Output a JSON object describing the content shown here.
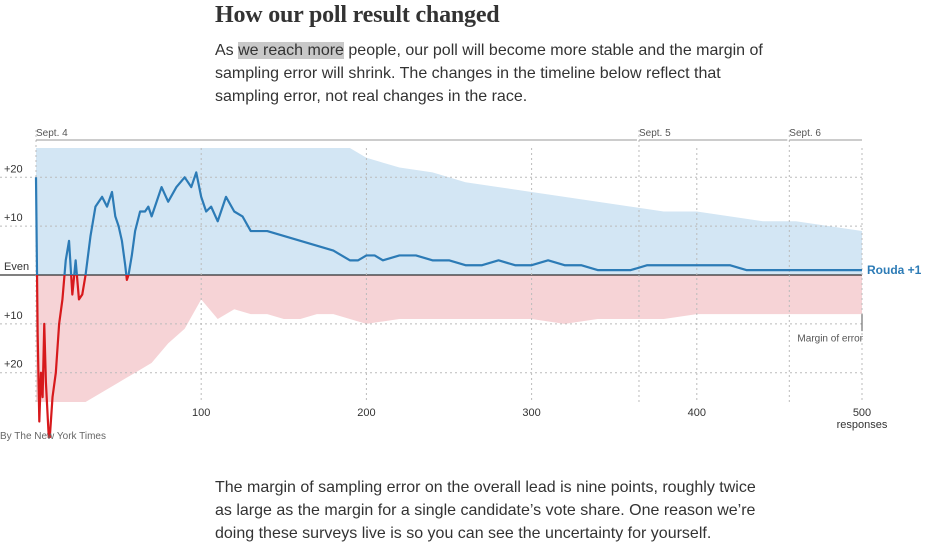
{
  "headline": "How our poll result changed",
  "intro": {
    "before": "As ",
    "highlight": "we reach more",
    "after": " people, our poll will become more stable and the margin of sampling error will shrink. The changes in the timeline below reflect that sampling error, not real changes in the race."
  },
  "credit": "By The New York Times",
  "outro": "The margin of sampling error on the overall lead is nine points, roughly twice as large as the margin for a single candidate’s vote share. One reason we’re doing these surveys live is so you can see the uncertainty for yourself.",
  "colors": {
    "dem_line": "#2c7bb6",
    "dem_band": "#d3e6f4",
    "rep_line": "#d7191c",
    "rep_band": "#f6d3d6",
    "grid": "#bbbbbb",
    "axis": "#000000"
  },
  "chart_data": {
    "type": "line",
    "x_axis": {
      "ticks": [
        100,
        200,
        300,
        400,
        500
      ],
      "tick_labels": [
        "100",
        "200",
        "300",
        "400",
        "500"
      ],
      "unit_label": "responses",
      "range": [
        0,
        500
      ]
    },
    "y_axis": {
      "ticks": [
        20,
        10,
        0,
        -10,
        -20
      ],
      "tick_labels": [
        "+20",
        "+10",
        "Even",
        "+10",
        "+20"
      ],
      "range": [
        -26,
        26
      ]
    },
    "date_markers": [
      {
        "label": "Sept. 4",
        "x": 0
      },
      {
        "label": "Sept. 5",
        "x": 365
      },
      {
        "label": "Sept. 6",
        "x": 456
      }
    ],
    "series": [
      {
        "name": "Rouda",
        "end_label": "Rouda +1",
        "x": [
          0,
          1,
          2,
          3,
          4,
          5,
          6,
          8,
          10,
          12,
          14,
          16,
          18,
          20,
          22,
          24,
          26,
          28,
          30,
          33,
          36,
          40,
          43,
          46,
          48,
          50,
          52,
          54,
          55,
          56,
          58,
          60,
          63,
          66,
          68,
          70,
          73,
          76,
          80,
          85,
          90,
          94,
          97,
          100,
          103,
          106,
          110,
          115,
          120,
          125,
          130,
          140,
          150,
          160,
          170,
          180,
          190,
          195,
          200,
          205,
          210,
          220,
          230,
          240,
          250,
          260,
          270,
          280,
          290,
          300,
          310,
          320,
          330,
          340,
          350,
          360,
          370,
          380,
          390,
          400,
          410,
          420,
          430,
          440,
          450,
          460,
          470,
          480,
          490,
          500
        ],
        "values": [
          20,
          -12,
          -30,
          -20,
          -25,
          -10,
          -22,
          -35,
          -25,
          -20,
          -10,
          -5,
          3,
          7,
          -4,
          3,
          -5,
          -4,
          0,
          8,
          14,
          16,
          14,
          17,
          12,
          10,
          7,
          2,
          -1,
          0,
          4,
          9,
          13,
          13,
          14,
          12,
          15,
          18,
          15,
          18,
          20,
          18,
          21,
          16,
          13,
          14,
          11,
          16,
          13,
          12,
          9,
          9,
          8,
          7,
          6,
          5,
          3,
          3,
          4,
          4,
          3,
          4,
          4,
          3,
          3,
          2,
          2,
          3,
          2,
          2,
          3,
          2,
          2,
          1,
          1,
          1,
          2,
          2,
          2,
          2,
          2,
          2,
          1,
          1,
          1,
          1,
          1,
          1,
          1,
          1
        ]
      }
    ],
    "margin_band": {
      "label": "Margin of error",
      "x": [
        0,
        10,
        20,
        30,
        40,
        50,
        60,
        70,
        80,
        90,
        100,
        110,
        120,
        130,
        140,
        150,
        160,
        170,
        180,
        190,
        200,
        220,
        240,
        260,
        280,
        300,
        320,
        340,
        360,
        380,
        400,
        420,
        440,
        460,
        480,
        500
      ],
      "upper": [
        26,
        26,
        26,
        26,
        26,
        26,
        26,
        26,
        26,
        26,
        26,
        26,
        26,
        26,
        26,
        26,
        26,
        26,
        26,
        26,
        24,
        22,
        21,
        19,
        18,
        17,
        16,
        15,
        14,
        13,
        13,
        12,
        11,
        11,
        10,
        9
      ],
      "lower": [
        -26,
        -26,
        -26,
        -26,
        -24,
        -22,
        -20,
        -18,
        -14,
        -11,
        -5,
        -9,
        -7,
        -8,
        -8,
        -9,
        -9,
        -8,
        -8,
        -9,
        -10,
        -9,
        -9,
        -9,
        -9,
        -9,
        -10,
        -9,
        -9,
        -9,
        -8,
        -8,
        -8,
        -8,
        -8,
        -8
      ]
    }
  }
}
